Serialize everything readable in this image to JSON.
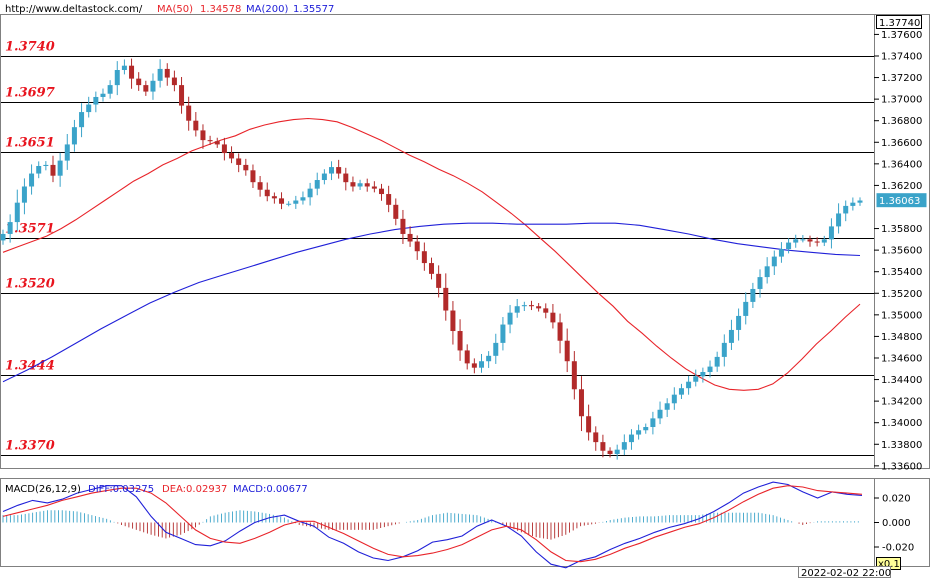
{
  "header": {
    "site": "http://www.deltastock.com/",
    "ma50_label": "MA(50)",
    "ma50_value": "1.34578",
    "ma200_label": "MA(200)",
    "ma200_value": "1.35577"
  },
  "price_panel": {
    "top_readout": "1.37740",
    "current_price": "1.36063",
    "y_ticks": [
      "1.37600",
      "1.37400",
      "1.37200",
      "1.37000",
      "1.36800",
      "1.36600",
      "1.36400",
      "1.36200",
      "1.35800",
      "1.35600",
      "1.35400",
      "1.35200",
      "1.35000",
      "1.34800",
      "1.34600",
      "1.34400",
      "1.34200",
      "1.34000",
      "1.33800",
      "1.33600"
    ],
    "levels": [
      {
        "label": "1.3740",
        "value": 1.374
      },
      {
        "label": "1.3697",
        "value": 1.3697
      },
      {
        "label": "1.3651",
        "value": 1.3651
      },
      {
        "label": "1.3571",
        "value": 1.3571
      },
      {
        "label": "1.3520",
        "value": 1.352
      },
      {
        "label": "1.3444",
        "value": 1.3444
      },
      {
        "label": "1.3370",
        "value": 1.337
      }
    ]
  },
  "macd_panel": {
    "title": "MACD(26,12,9)",
    "diff_label": "DIFF:0.03275",
    "dea_label": "DEA:0.02937",
    "macd_label": "MACD:0.00677",
    "y_ticks": [
      "0.020",
      "0.000",
      "-0.020"
    ],
    "scale_badge": "x0.1"
  },
  "footer": {
    "timestamp": "2022-02-02 22:00"
  },
  "colors": {
    "up_candle": "#3aa3c9",
    "down_candle": "#b22a2a",
    "ma50": "#e8242a",
    "ma200": "#2020d8",
    "level_label": "#e8141e",
    "diff": "#2020d8",
    "dea": "#e8242a"
  },
  "chart_data": [
    {
      "type": "candlestick",
      "title": "",
      "ylim": [
        1.3358,
        1.3778
      ],
      "closes": [
        1.3575,
        1.3586,
        1.3604,
        1.3619,
        1.3631,
        1.3638,
        1.3639,
        1.3629,
        1.3643,
        1.3658,
        1.3674,
        1.3688,
        1.3695,
        1.3702,
        1.3705,
        1.3713,
        1.3727,
        1.3731,
        1.3719,
        1.3713,
        1.3707,
        1.3717,
        1.3728,
        1.372,
        1.3713,
        1.3694,
        1.368,
        1.3671,
        1.3662,
        1.3661,
        1.3658,
        1.365,
        1.3645,
        1.3639,
        1.3634,
        1.3623,
        1.3616,
        1.361,
        1.3608,
        1.3603,
        1.3603,
        1.3606,
        1.3609,
        1.3617,
        1.3625,
        1.3631,
        1.3637,
        1.3631,
        1.3623,
        1.3619,
        1.3622,
        1.3619,
        1.3617,
        1.3612,
        1.3602,
        1.3589,
        1.3575,
        1.3568,
        1.3559,
        1.3548,
        1.3538,
        1.3525,
        1.3504,
        1.3485,
        1.3467,
        1.3455,
        1.3451,
        1.3457,
        1.3462,
        1.3474,
        1.3491,
        1.3502,
        1.3508,
        1.3509,
        1.3508,
        1.3506,
        1.3502,
        1.3493,
        1.3476,
        1.3457,
        1.3431,
        1.3406,
        1.3391,
        1.3382,
        1.3374,
        1.3371,
        1.3375,
        1.3382,
        1.3389,
        1.3393,
        1.3396,
        1.3404,
        1.3412,
        1.3418,
        1.3426,
        1.3432,
        1.3438,
        1.3443,
        1.3447,
        1.3452,
        1.3461,
        1.3474,
        1.3486,
        1.3499,
        1.3512,
        1.3524,
        1.3535,
        1.3545,
        1.3554,
        1.3561,
        1.3567,
        1.357,
        1.357,
        1.3568,
        1.3567,
        1.357,
        1.3582,
        1.3594,
        1.3601,
        1.3604,
        1.3606
      ]
    },
    {
      "type": "line",
      "title": "",
      "series": [
        {
          "name": "MA(50)",
          "values": [
            1.3558,
            1.3563,
            1.3568,
            1.3573,
            1.358,
            1.3588,
            1.3597,
            1.3606,
            1.3615,
            1.3624,
            1.3631,
            1.3639,
            1.3645,
            1.3652,
            1.3657,
            1.3662,
            1.3666,
            1.3672,
            1.3676,
            1.3679,
            1.3681,
            1.3682,
            1.3681,
            1.3679,
            1.3674,
            1.3668,
            1.3662,
            1.3655,
            1.3648,
            1.3642,
            1.3635,
            1.3629,
            1.3622,
            1.3614,
            1.3604,
            1.3594,
            1.3583,
            1.3571,
            1.3559,
            1.3546,
            1.3533,
            1.352,
            1.3508,
            1.3494,
            1.3483,
            1.3471,
            1.346,
            1.345,
            1.3442,
            1.3435,
            1.3431,
            1.343,
            1.3431,
            1.3436,
            1.3446,
            1.3459,
            1.3473,
            1.3485,
            1.3498,
            1.351
          ]
        },
        {
          "name": "MA(200)",
          "values": [
            1.3438,
            1.3449,
            1.3461,
            1.3474,
            1.3487,
            1.3499,
            1.3511,
            1.3521,
            1.353,
            1.3537,
            1.3544,
            1.3551,
            1.3558,
            1.3564,
            1.357,
            1.3575,
            1.3579,
            1.3582,
            1.3584,
            1.3585,
            1.3585,
            1.3584,
            1.3584,
            1.3584,
            1.3585,
            1.3585,
            1.3583,
            1.3579,
            1.3575,
            1.357,
            1.3566,
            1.3563,
            1.356,
            1.3558,
            1.3556,
            1.3555
          ]
        }
      ]
    },
    {
      "type": "bar",
      "title": "MACD(26,12,9)",
      "ylim": [
        -0.0355,
        0.0355
      ],
      "series": [
        {
          "name": "DIFF",
          "values": [
            0.009,
            0.014,
            0.018,
            0.016,
            0.019,
            0.024,
            0.027,
            0.03,
            0.03,
            0.021,
            0.005,
            -0.008,
            -0.013,
            -0.018,
            -0.019,
            -0.015,
            -0.007,
            0.0,
            0.004,
            0.006,
            0.001,
            -0.003,
            -0.012,
            -0.017,
            -0.024,
            -0.029,
            -0.031,
            -0.028,
            -0.023,
            -0.016,
            -0.014,
            -0.011,
            -0.003,
            0.002,
            -0.003,
            -0.011,
            -0.024,
            -0.034,
            -0.037,
            -0.031,
            -0.028,
            -0.022,
            -0.017,
            -0.013,
            -0.008,
            -0.004,
            -0.001,
            0.003,
            0.009,
            0.016,
            0.024,
            0.029,
            0.033,
            0.031,
            0.025,
            0.02,
            0.025,
            0.023,
            0.022
          ]
        },
        {
          "name": "DEA",
          "values": [
            0.005,
            0.008,
            0.011,
            0.014,
            0.018,
            0.021,
            0.024,
            0.026,
            0.028,
            0.028,
            0.024,
            0.016,
            0.005,
            -0.006,
            -0.013,
            -0.016,
            -0.017,
            -0.013,
            -0.008,
            -0.002,
            0.001,
            0.001,
            -0.004,
            -0.009,
            -0.015,
            -0.021,
            -0.026,
            -0.028,
            -0.027,
            -0.025,
            -0.022,
            -0.018,
            -0.012,
            -0.006,
            -0.003,
            -0.006,
            -0.014,
            -0.024,
            -0.031,
            -0.032,
            -0.03,
            -0.026,
            -0.021,
            -0.017,
            -0.012,
            -0.008,
            -0.004,
            -0.001,
            0.004,
            0.01,
            0.017,
            0.023,
            0.028,
            0.03,
            0.029,
            0.026,
            0.025,
            0.024,
            0.023
          ]
        },
        {
          "name": "MACD",
          "values": [
            0.006,
            0.006,
            0.008,
            0.01,
            0.01,
            0.009,
            0.006,
            0.003,
            -0.002,
            -0.006,
            -0.01,
            -0.013,
            -0.01,
            -0.004,
            0.005,
            0.008,
            0.01,
            0.009,
            0.007,
            0.004,
            -0.002,
            -0.004,
            -0.006,
            -0.006,
            -0.006,
            -0.006,
            -0.003,
            0.0,
            0.002,
            0.006,
            0.008,
            0.007,
            0.006,
            0.002,
            -0.003,
            -0.008,
            -0.012,
            -0.014,
            -0.01,
            -0.003,
            -0.001,
            0.002,
            0.004,
            0.005,
            0.005,
            0.006,
            0.006,
            0.006,
            0.008,
            0.008,
            0.008,
            0.008,
            0.006,
            0.002,
            -0.002,
            0.001,
            0.001,
            0.001,
            0.001
          ]
        }
      ]
    }
  ]
}
